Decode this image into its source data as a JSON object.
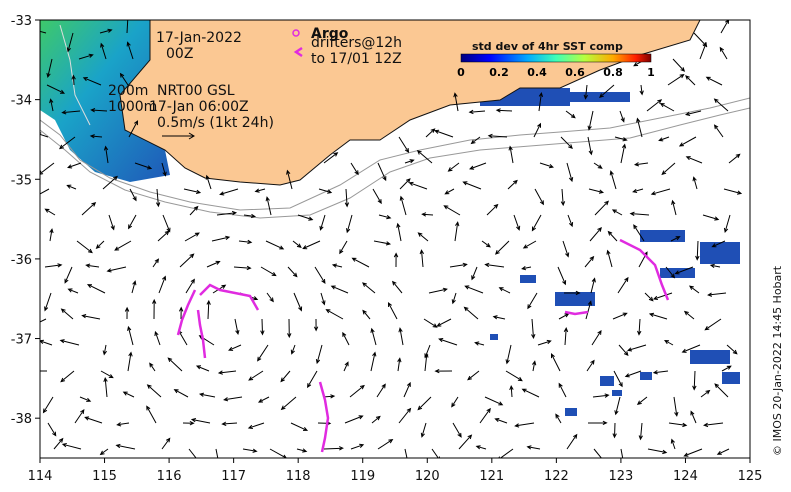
{
  "map": {
    "extent": {
      "lon": [
        114,
        125
      ],
      "lat": [
        -38.5,
        -33
      ]
    },
    "lon_ticks": [
      "114",
      "115",
      "116",
      "117",
      "118",
      "119",
      "120",
      "121",
      "122",
      "123",
      "124",
      "125"
    ],
    "lat_ticks": [
      "-33",
      "-34",
      "-35",
      "-36",
      "-37",
      "-38"
    ],
    "land_color": "#fbc893",
    "sst_color": "#1aa3c8",
    "velocity_arrow_color": "#000000",
    "drifter_color": "#e02be0"
  },
  "annotations": {
    "date_line1": "17-Jan-2022",
    "date_line2": "00Z",
    "depth_200": "200m",
    "depth_1000": "1000m",
    "product": "NRT00 GSL",
    "product_time": "17-Jan 06:00Z",
    "scale_arrow_label": "0.5m/s (1kt 24h)",
    "argo_label": "Argo",
    "drifters_line1": "drifters@12h",
    "drifters_line2": "to 17/01 12Z",
    "credit": "© IMOS 20-Jan-2022 14:45 Hobart"
  },
  "colorbar": {
    "title": "std dev of 4hr SST comp",
    "ticks": [
      "0",
      "0.2",
      "0.4",
      "0.6",
      "0.8",
      "1"
    ]
  }
}
